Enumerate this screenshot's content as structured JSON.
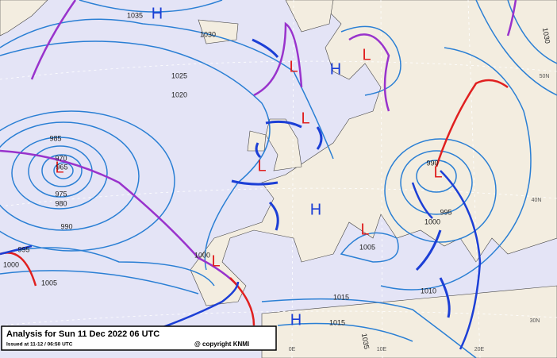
{
  "header": {
    "title": "Analysis for Sun 11 Dec 2022 06 UTC",
    "issued": "Issued at 11-12 / 06:50 UTC",
    "copyright": "@ copyright KNMI"
  },
  "pressure_centers": [
    "H",
    "L",
    "H",
    "L",
    "L",
    "L",
    "L",
    "H",
    "L",
    "L",
    "L",
    "H"
  ],
  "isobar_labels": [
    1035,
    1030,
    1025,
    1020,
    985,
    970,
    965,
    975,
    980,
    990,
    995,
    1000,
    1005,
    1000,
    990,
    995,
    1000,
    1005,
    1010,
    1015,
    1015,
    1035,
    1030
  ],
  "grid_labels": [
    "50N",
    "40N",
    "30N",
    "0E",
    "10E",
    "20E"
  ]
}
